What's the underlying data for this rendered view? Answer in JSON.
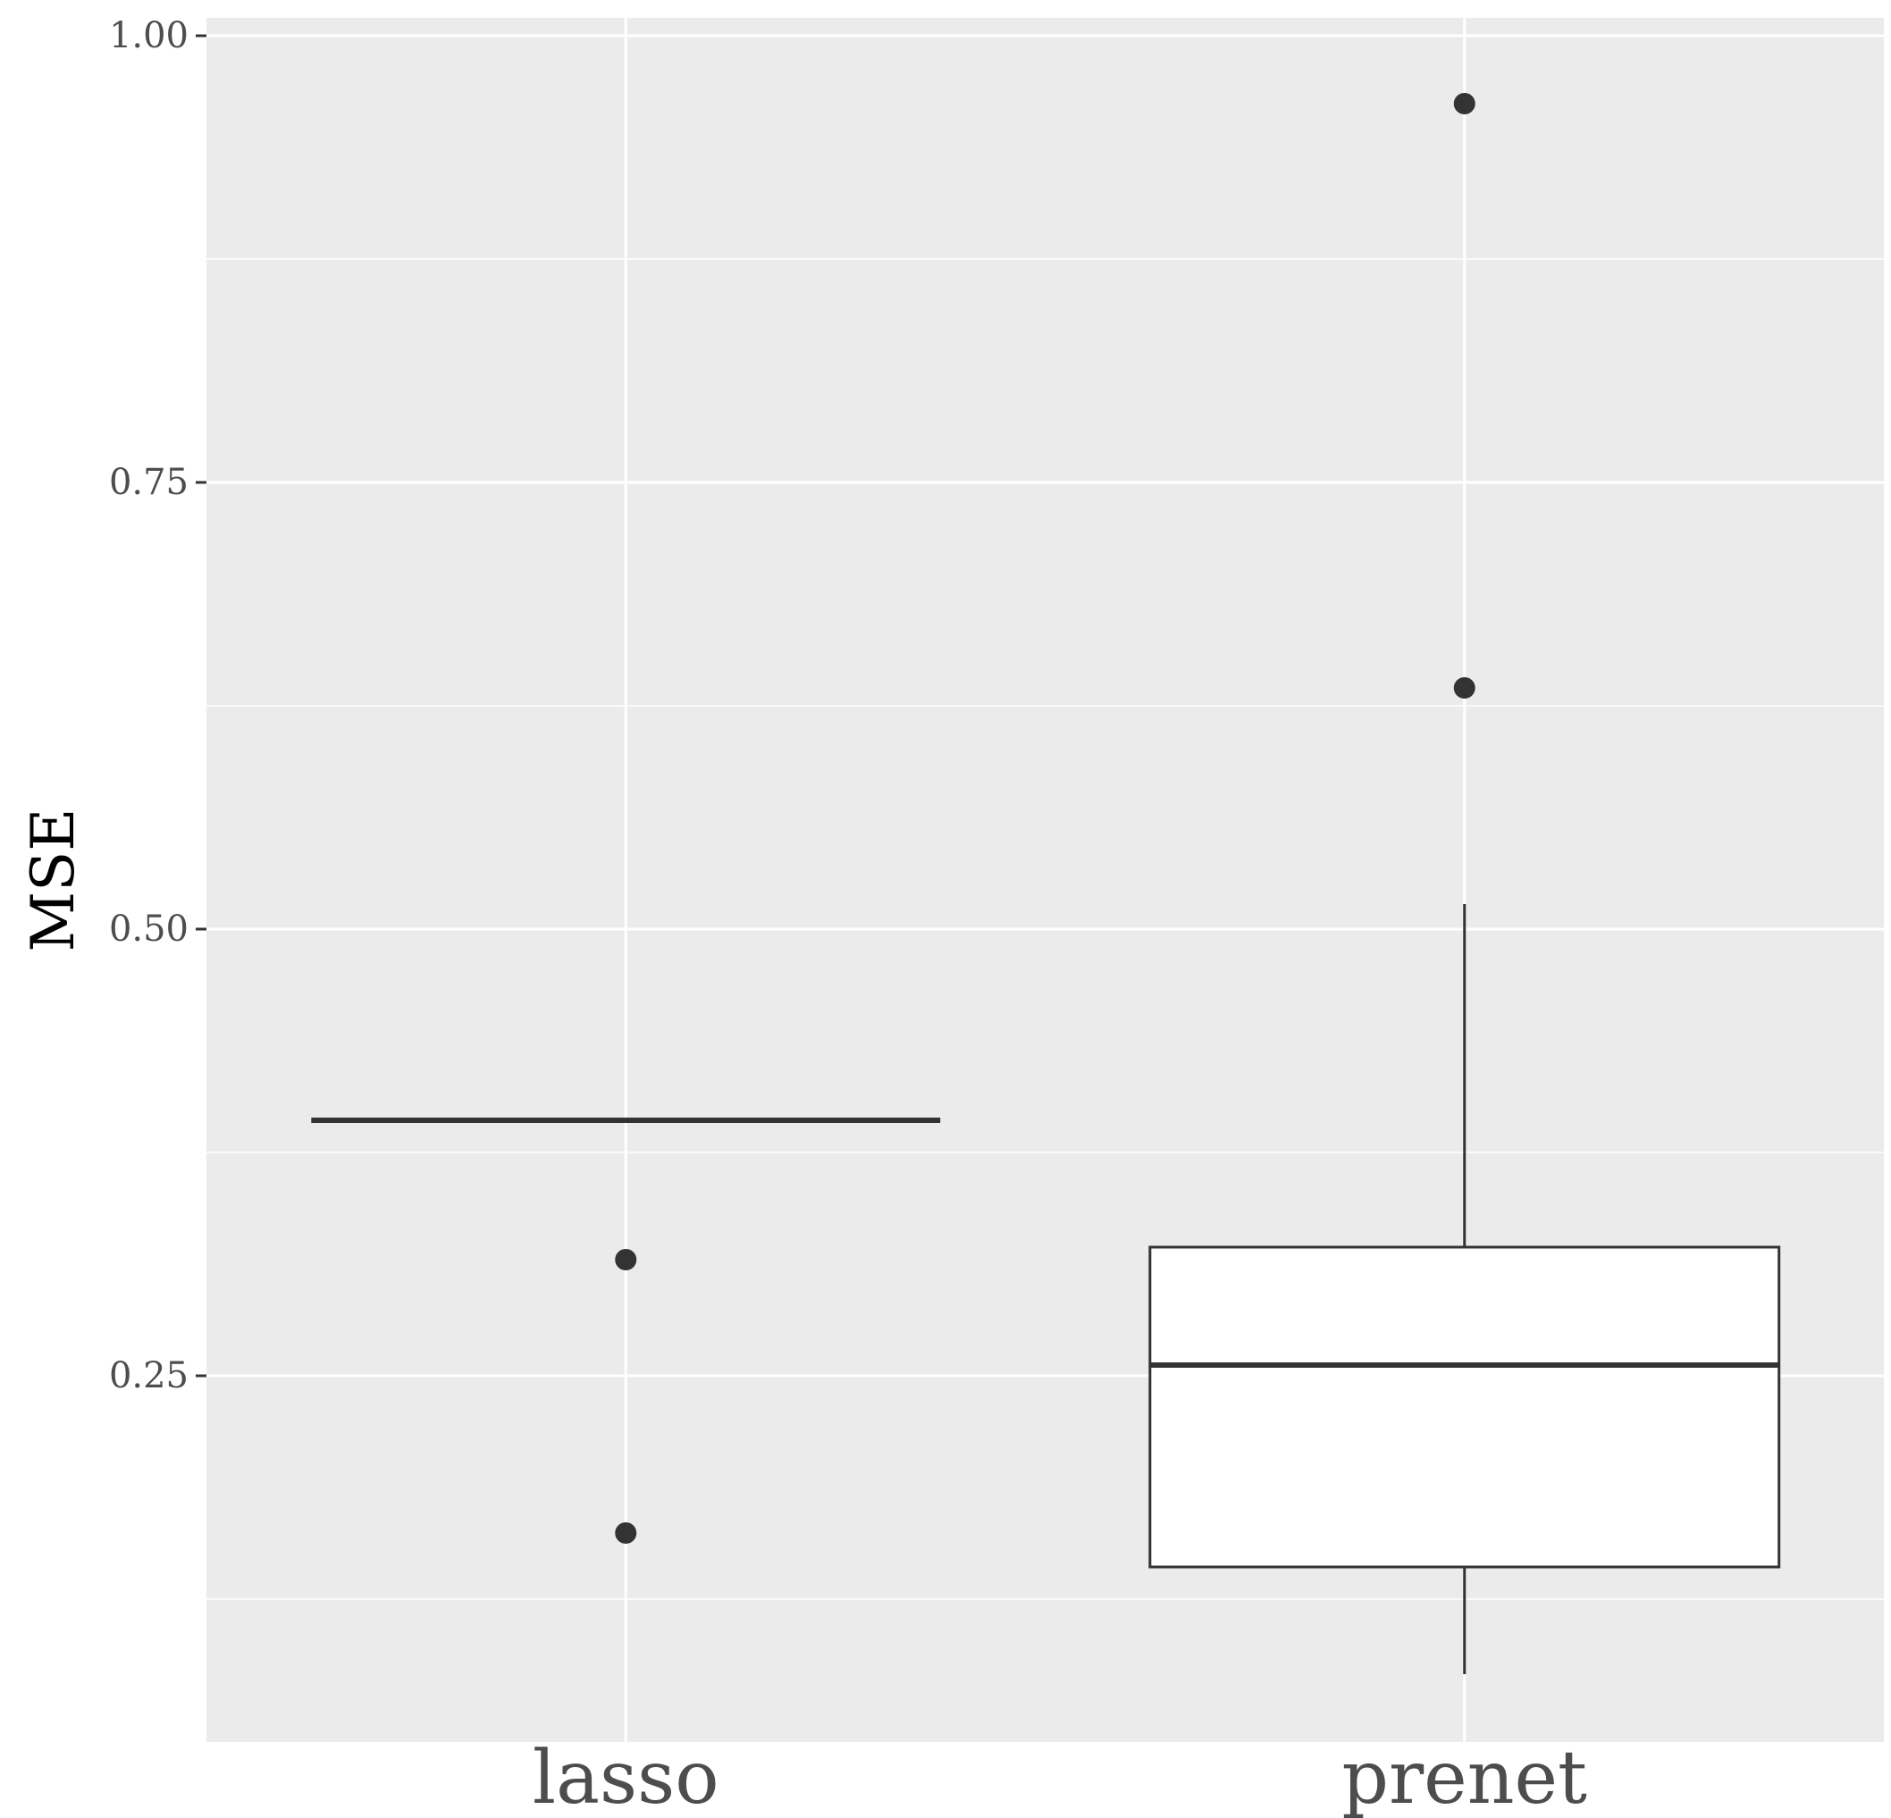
{
  "chart_data": {
    "type": "boxplot",
    "title": "",
    "xlabel": "",
    "ylabel": "MSE",
    "ylim": [
      0.045,
      1.01
    ],
    "y_ticks": [
      {
        "value": 0.25,
        "label": "0.25"
      },
      {
        "value": 0.5,
        "label": "0.50"
      },
      {
        "value": 0.75,
        "label": "0.75"
      },
      {
        "value": 1.0,
        "label": "1.00"
      }
    ],
    "y_minor_gridlines": [
      0.125,
      0.375,
      0.625,
      0.875
    ],
    "grid": true,
    "categories": [
      "lasso",
      "prenet"
    ],
    "boxes": [
      {
        "category": "lasso",
        "min": 0.393,
        "q1": 0.393,
        "median": 0.393,
        "q3": 0.393,
        "max": 0.393,
        "outliers": [
          0.315,
          0.162
        ]
      },
      {
        "category": "prenet",
        "min": 0.083,
        "q1": 0.143,
        "median": 0.256,
        "q3": 0.322,
        "max": 0.514,
        "outliers": [
          0.962,
          0.635
        ]
      }
    ],
    "colors": {
      "panel": "#ebebeb",
      "grid": "#ffffff",
      "box_fill": "#ffffff",
      "box_line": "#333333",
      "outlier": "#333333"
    }
  }
}
